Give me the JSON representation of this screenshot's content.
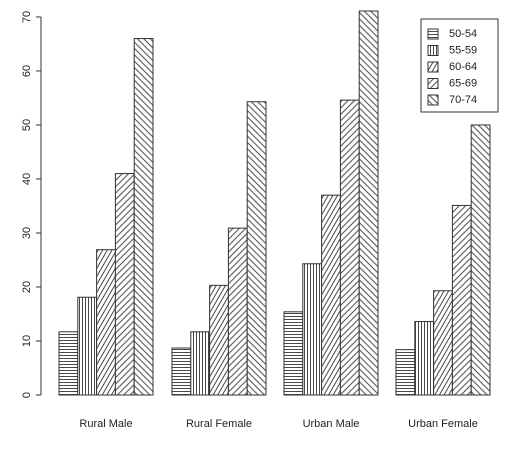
{
  "chart_data": {
    "type": "bar",
    "categories": [
      "Rural Male",
      "Rural Female",
      "Urban Male",
      "Urban Female"
    ],
    "series": [
      {
        "name": "50-54",
        "values": [
          11.7,
          8.7,
          15.4,
          8.4
        ]
      },
      {
        "name": "55-59",
        "values": [
          18.1,
          11.7,
          24.3,
          13.6
        ]
      },
      {
        "name": "60-64",
        "values": [
          26.9,
          20.3,
          37.0,
          19.3
        ]
      },
      {
        "name": "65-69",
        "values": [
          41.0,
          30.9,
          54.6,
          35.1
        ]
      },
      {
        "name": "70-74",
        "values": [
          66.0,
          54.3,
          71.1,
          50.0
        ]
      }
    ],
    "yticks": [
      0,
      10,
      20,
      30,
      40,
      50,
      60,
      70
    ],
    "ylim": [
      0,
      71.1
    ],
    "title": "",
    "xlabel": "",
    "ylabel": "",
    "legend_position": "top-right",
    "bar_fill": "#ffffff",
    "bar_stroke": "#333333"
  }
}
